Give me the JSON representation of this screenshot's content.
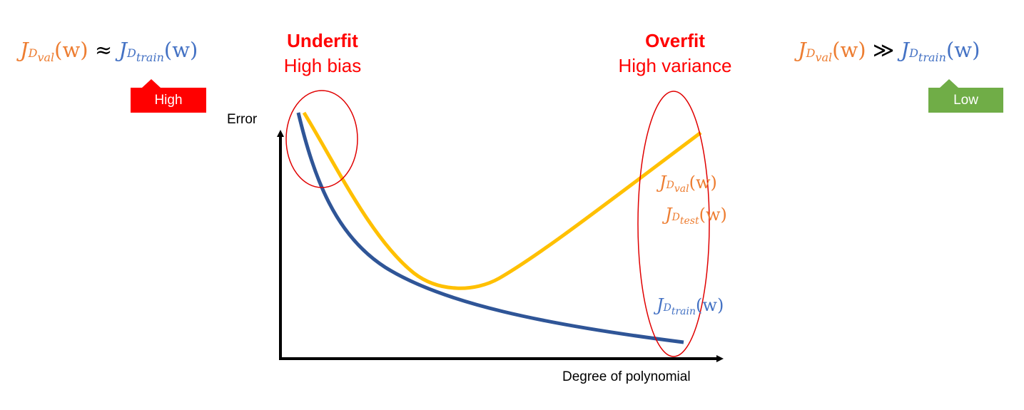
{
  "equations": {
    "left": {
      "jval": "J",
      "jval_sub": "D",
      "jval_subsub": "val",
      "arg": "(w)",
      "op": "≈",
      "jtrain": "J",
      "jtrain_sub": "D",
      "jtrain_subsub": "train",
      "arg2": "(w)"
    },
    "right": {
      "jval": "J",
      "jval_sub": "D",
      "jval_subsub": "val",
      "arg": "(w)",
      "op": "≫",
      "jtrain": "J",
      "jtrain_sub": "D",
      "jtrain_subsub": "train",
      "arg2": "(w)"
    }
  },
  "tags": {
    "left": {
      "text": "High",
      "color": "#FF0000"
    },
    "right": {
      "text": "Low",
      "color": "#70AD47"
    }
  },
  "regions": {
    "underfit": {
      "title": "Underfit",
      "subtitle": "High bias"
    },
    "overfit": {
      "title": "Overfit",
      "subtitle": "High variance"
    }
  },
  "axes": {
    "y_label": "Error",
    "x_label": "Degree of polynomial"
  },
  "curve_labels": {
    "val": {
      "j": "J",
      "sub": "D",
      "subsub": "val",
      "arg": "(w)"
    },
    "test": {
      "j": "J",
      "sub": "D",
      "subsub": "test",
      "arg": "(w)"
    },
    "train": {
      "j": "J",
      "sub": "D",
      "subsub": "train",
      "arg": "(w)"
    }
  },
  "colors": {
    "val_curve": "#FFC000",
    "train_curve": "#2F5597",
    "ellipse": "#E00000",
    "val_text": "#ED7D31",
    "train_text": "#4472C4",
    "region_text": "#FF0000"
  }
}
